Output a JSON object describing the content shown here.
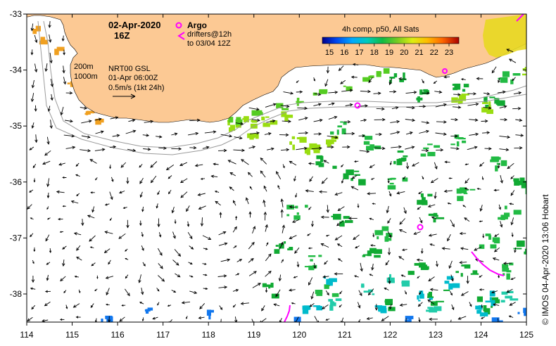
{
  "header": {
    "date": "02-Apr-2020",
    "time": "16Z",
    "argo_label": "Argo",
    "drifters_line1": "drifters@12h",
    "drifters_line2": "to 03/04 12Z"
  },
  "info_block": {
    "depth1": "200m",
    "depth2": "1000m",
    "model": "NRT00 GSL",
    "valid": "01-Apr 06:00Z",
    "scale": "0.5m/s (1kt 24h)"
  },
  "colorbar": {
    "title": "4h comp, p50, All Sats",
    "ticks": [
      "15",
      "16",
      "17",
      "18",
      "19",
      "20",
      "21",
      "22",
      "23"
    ],
    "colors": [
      "#00008b",
      "#0033cc",
      "#0077ff",
      "#00bbdd",
      "#00cc99",
      "#22bb33",
      "#66cc22",
      "#aadd22",
      "#ffee00",
      "#ffaa00",
      "#ff6600",
      "#dd2200",
      "#990000"
    ]
  },
  "axes": {
    "x_ticks": [
      "114",
      "115",
      "116",
      "117",
      "118",
      "119",
      "120",
      "121",
      "122",
      "123",
      "124",
      "125"
    ],
    "y_ticks": [
      "-33",
      "-34",
      "-35",
      "-36",
      "-37",
      "-38"
    ]
  },
  "credit": "© IMOS 04-Apr-2020 13:06 Hobart",
  "colors": {
    "land": "#fcc994",
    "argo": "#ff00ff",
    "drifter": "#ff00ff",
    "arrow": "#000000",
    "contour": "#9a9a9a"
  }
}
